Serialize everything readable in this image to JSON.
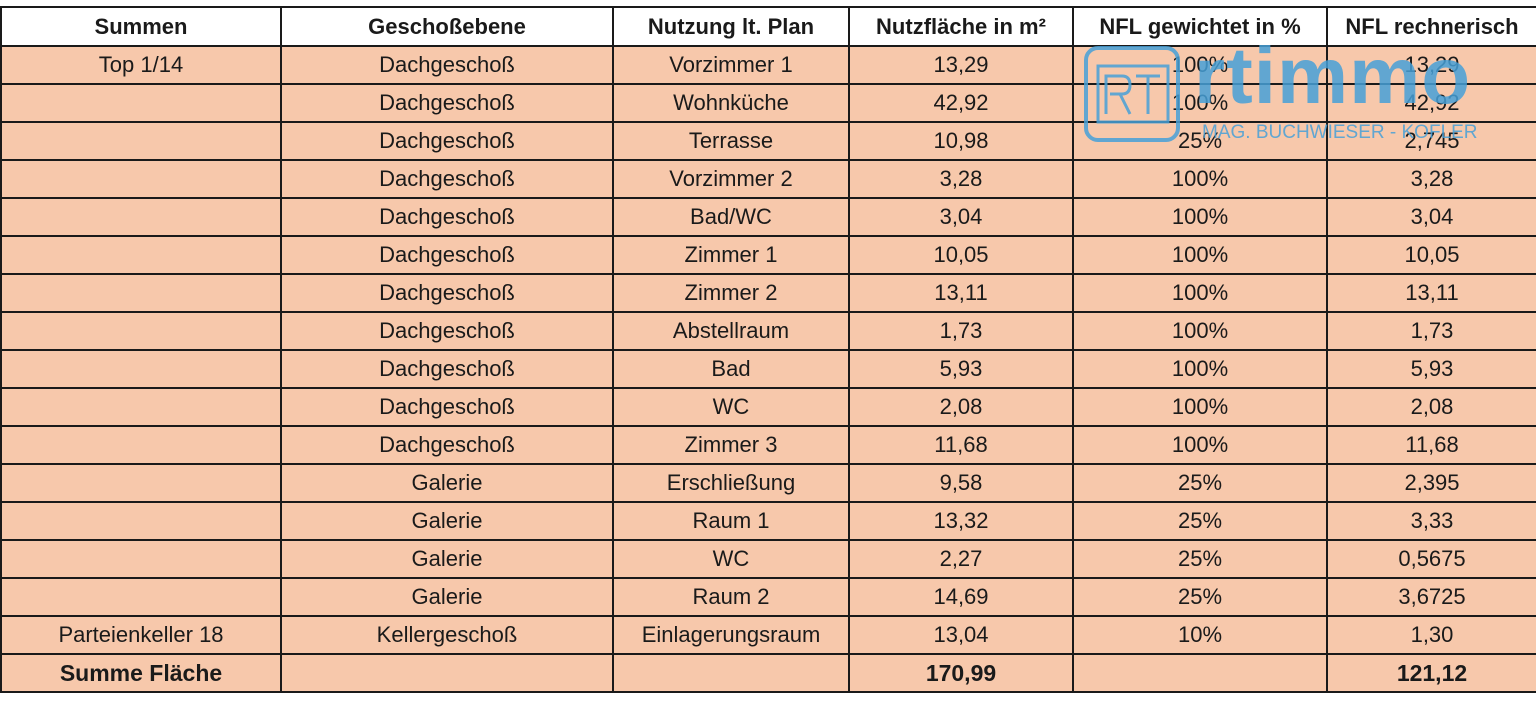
{
  "table": {
    "headers": [
      "Summen",
      "Geschoßebene",
      "Nutzung lt. Plan",
      "Nutzfläche in m²",
      "NFL gewichtet in %",
      "NFL rechnerisch"
    ],
    "rows": [
      [
        "Top 1/14",
        "Dachgeschoß",
        "Vorzimmer 1",
        "13,29",
        "100%",
        "13,29"
      ],
      [
        "",
        "Dachgeschoß",
        "Wohnküche",
        "42,92",
        "100%",
        "42,92"
      ],
      [
        "",
        "Dachgeschoß",
        "Terrasse",
        "10,98",
        "25%",
        "2,745"
      ],
      [
        "",
        "Dachgeschoß",
        "Vorzimmer 2",
        "3,28",
        "100%",
        "3,28"
      ],
      [
        "",
        "Dachgeschoß",
        "Bad/WC",
        "3,04",
        "100%",
        "3,04"
      ],
      [
        "",
        "Dachgeschoß",
        "Zimmer 1",
        "10,05",
        "100%",
        "10,05"
      ],
      [
        "",
        "Dachgeschoß",
        "Zimmer 2",
        "13,11",
        "100%",
        "13,11"
      ],
      [
        "",
        "Dachgeschoß",
        "Abstellraum",
        "1,73",
        "100%",
        "1,73"
      ],
      [
        "",
        "Dachgeschoß",
        "Bad",
        "5,93",
        "100%",
        "5,93"
      ],
      [
        "",
        "Dachgeschoß",
        "WC",
        "2,08",
        "100%",
        "2,08"
      ],
      [
        "",
        "Dachgeschoß",
        "Zimmer 3",
        "11,68",
        "100%",
        "11,68"
      ],
      [
        "",
        "Galerie",
        "Erschließung",
        "9,58",
        "25%",
        "2,395"
      ],
      [
        "",
        "Galerie",
        "Raum 1",
        "13,32",
        "25%",
        "3,33"
      ],
      [
        "",
        "Galerie",
        "WC",
        "2,27",
        "25%",
        "0,5675"
      ],
      [
        "",
        "Galerie",
        "Raum 2",
        "14,69",
        "25%",
        "3,6725"
      ],
      [
        "Parteienkeller 18",
        "Kellergeschoß",
        "Einlagerungsraum",
        "13,04",
        "10%",
        "1,30"
      ]
    ],
    "total": {
      "label": "Summe Fläche",
      "floor": "",
      "usage": "",
      "area": "170,99",
      "weight": "",
      "computed": "121,12"
    }
  },
  "watermark": {
    "logo_letters": "RT",
    "brand": "rtimmo",
    "subtitle": "MAG. BUCHWIESER - KOFLER",
    "color": "#46a0d7",
    "icon": "rt-logo-icon"
  },
  "colors": {
    "row_fill": "#f7c8ab",
    "header_fill": "#ffffff",
    "border": "#1a1a1a"
  }
}
